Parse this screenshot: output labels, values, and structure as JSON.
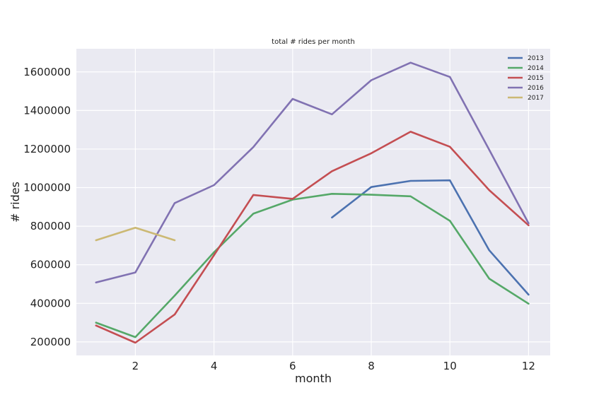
{
  "chart_data": {
    "type": "line",
    "title": "total # rides per month",
    "xlabel": "month",
    "ylabel": "# rides",
    "xlim": [
      0.5,
      12.55
    ],
    "ylim": [
      130000,
      1720000
    ],
    "xticks": [
      2,
      4,
      6,
      8,
      10,
      12
    ],
    "xtick_labels": [
      "2",
      "4",
      "6",
      "8",
      "10",
      "12"
    ],
    "yticks": [
      200000,
      400000,
      600000,
      800000,
      1000000,
      1200000,
      1400000,
      1600000
    ],
    "ytick_labels": [
      "200000",
      "400000",
      "600000",
      "800000",
      "1000000",
      "1200000",
      "1400000",
      "1600000"
    ],
    "grid": true,
    "legend_position": "top-right",
    "series": [
      {
        "name": "2013",
        "color": "#4c72b0",
        "x": [
          7,
          8,
          9,
          10,
          11,
          12
        ],
        "values": [
          845000,
          1003000,
          1035000,
          1038000,
          675000,
          445000
        ]
      },
      {
        "name": "2014",
        "color": "#55a868",
        "x": [
          1,
          2,
          3,
          4,
          5,
          6,
          7,
          8,
          9,
          10,
          11,
          12
        ],
        "values": [
          300000,
          225000,
          440000,
          665000,
          865000,
          938000,
          968000,
          963000,
          955000,
          828000,
          528000,
          398000
        ]
      },
      {
        "name": "2015",
        "color": "#c44e52",
        "x": [
          1,
          2,
          3,
          4,
          5,
          6,
          7,
          8,
          9,
          10,
          11,
          12
        ],
        "values": [
          285000,
          196000,
          342000,
          650000,
          962000,
          942000,
          1085000,
          1178000,
          1290000,
          1212000,
          987000,
          805000
        ]
      },
      {
        "name": "2016",
        "color": "#8172b2",
        "x": [
          1,
          2,
          3,
          4,
          5,
          6,
          7,
          8,
          9,
          10,
          11,
          12
        ],
        "values": [
          508000,
          560000,
          920000,
          1013000,
          1210000,
          1460000,
          1380000,
          1557000,
          1648000,
          1574000,
          1196000,
          815000
        ]
      },
      {
        "name": "2017",
        "color": "#ccb974",
        "x": [
          1,
          2,
          3
        ],
        "values": [
          727000,
          792000,
          727000
        ]
      }
    ]
  }
}
